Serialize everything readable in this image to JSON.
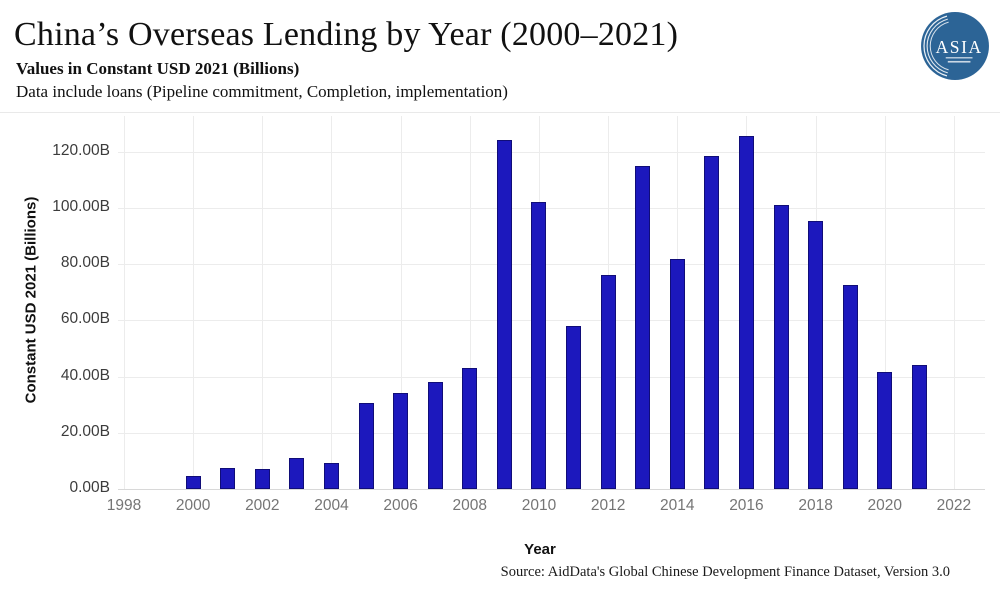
{
  "header": {
    "title": "China’s Overseas Lending by Year (2000–2021)",
    "subtitle": "Values in Constant USD 2021 (Billions)",
    "description": "Data include loans (Pipeline commitment, Completion, implementation)",
    "logo": {
      "text": "ASIA",
      "circle_color": "#2c6496",
      "text_color": "#ffffff"
    }
  },
  "chart_data": {
    "type": "bar",
    "title": "China’s Overseas Lending by Year (2000–2021)",
    "xlabel": "Year",
    "ylabel": "Constant USD 2021 (Billions)",
    "categories": [
      2000,
      2001,
      2002,
      2003,
      2004,
      2005,
      2006,
      2007,
      2008,
      2009,
      2010,
      2011,
      2012,
      2013,
      2014,
      2015,
      2016,
      2017,
      2018,
      2019,
      2020,
      2021
    ],
    "values": [
      4.8,
      7.4,
      7.0,
      11.0,
      9.4,
      30.5,
      34.3,
      38.0,
      43.0,
      124.2,
      102.0,
      58.0,
      76.2,
      115.0,
      82.0,
      118.6,
      125.6,
      101.2,
      95.3,
      72.5,
      41.8,
      44.2
    ],
    "x_ticks": [
      1998,
      2000,
      2002,
      2004,
      2006,
      2008,
      2010,
      2012,
      2014,
      2016,
      2018,
      2020,
      2022
    ],
    "y_ticks": [
      0,
      20,
      40,
      60,
      80,
      100,
      120
    ],
    "y_tick_labels": [
      "0.00B",
      "20.00B",
      "40.00B",
      "60.00B",
      "80.00B",
      "100.00B",
      "120.00B"
    ],
    "ylim": [
      0,
      133
    ],
    "xlim": [
      1997.8,
      2022.9
    ],
    "grid": true,
    "legend": "none",
    "bar_color": "#1c18bd",
    "bar_border_color": "#100d78"
  },
  "footer": {
    "source": "Source: AidData's Global Chinese Development Finance Dataset, Version 3.0"
  }
}
